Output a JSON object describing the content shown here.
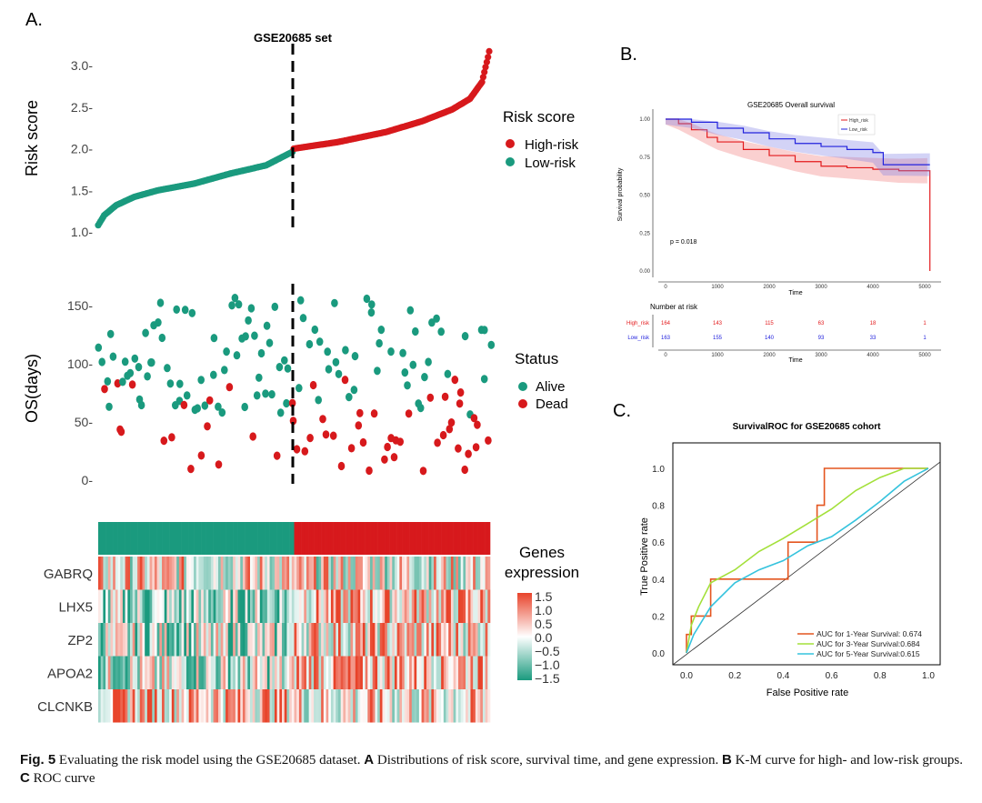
{
  "chart_data": [
    {
      "panel_label": "A.",
      "type": "scatter",
      "set_label": "GSE20685 set",
      "ylabel": "Risk score",
      "ylim": [
        1.0,
        3.25
      ],
      "yticks": [
        "1.0",
        "1.5",
        "2.0",
        "2.5",
        "3.0"
      ],
      "legend": {
        "title": "Risk score",
        "entries": [
          "High-risk",
          "Low-risk"
        ]
      },
      "n_low": 163,
      "n_high": 164,
      "low_curve": [
        [
          0,
          1.08
        ],
        [
          5,
          1.2
        ],
        [
          15,
          1.32
        ],
        [
          30,
          1.42
        ],
        [
          50,
          1.5
        ],
        [
          80,
          1.58
        ],
        [
          110,
          1.7
        ],
        [
          140,
          1.8
        ],
        [
          163,
          1.97
        ]
      ],
      "high_curve": [
        [
          163,
          2.0
        ],
        [
          200,
          2.08
        ],
        [
          240,
          2.2
        ],
        [
          270,
          2.33
        ],
        [
          295,
          2.47
        ],
        [
          310,
          2.6
        ],
        [
          320,
          2.8
        ],
        [
          325,
          3.1
        ],
        [
          327,
          3.24
        ]
      ]
    },
    {
      "type": "scatter",
      "ylabel": "OS(days)",
      "ylim": [
        0,
        165
      ],
      "yticks": [
        "0",
        "50",
        "100",
        "150"
      ],
      "legend": {
        "title": "Status",
        "entries": [
          "Alive",
          "Dead"
        ]
      }
    },
    {
      "type": "heatmap",
      "genes": [
        "GABRQ",
        "LHX5",
        "ZP2",
        "APOA2",
        "CLCNKB"
      ],
      "legend": {
        "title_line1": "Genes",
        "title_line2": "expression",
        "ticks": [
          "1.5",
          "1.0",
          "0.5",
          "0.0",
          "−0.5",
          "−1.0",
          "−1.5"
        ]
      }
    },
    {
      "panel_label": "B.",
      "type": "line",
      "title": "GSE20685 Overall survival",
      "xlabel": "Time",
      "ylabel": "Survival probability",
      "xticks": [
        "0",
        "1000",
        "2000",
        "3000",
        "4000",
        "5000"
      ],
      "yticks": [
        "0.00",
        "0.25",
        "0.50",
        "0.75",
        "1.00"
      ],
      "pvalue": "p = 0.018",
      "series": [
        {
          "name": "High_risk",
          "x": [
            0,
            250,
            500,
            800,
            1000,
            1500,
            2000,
            2500,
            3000,
            3500,
            4000,
            4500,
            5050,
            5100
          ],
          "y": [
            1.0,
            0.97,
            0.93,
            0.88,
            0.85,
            0.8,
            0.76,
            0.72,
            0.69,
            0.68,
            0.67,
            0.66,
            0.66,
            0.0
          ]
        },
        {
          "name": "Low_risk",
          "x": [
            0,
            500,
            1000,
            1500,
            2000,
            2500,
            3000,
            3500,
            4000,
            4200,
            5100
          ],
          "y": [
            1.0,
            0.98,
            0.94,
            0.91,
            0.87,
            0.84,
            0.82,
            0.8,
            0.78,
            0.7,
            0.7
          ]
        }
      ],
      "risk_table": {
        "title": "Number at risk",
        "rows": [
          {
            "label": "High_risk",
            "values": [
              "164",
              "143",
              "115",
              "63",
              "18",
              "1"
            ]
          },
          {
            "label": "Low_risk",
            "values": [
              "163",
              "155",
              "140",
              "93",
              "33",
              "1"
            ]
          }
        ]
      }
    },
    {
      "panel_label": "C.",
      "type": "line",
      "title": "SurvivalROC for GSE20685 cohort",
      "xlabel": "False Positive rate",
      "ylabel": "True Positive rate",
      "ticks": [
        "0.0",
        "0.2",
        "0.4",
        "0.6",
        "0.8",
        "1.0"
      ],
      "series": [
        {
          "name": "AUC for 1-Year Survival: 0.674",
          "x": [
            0,
            0,
            0.02,
            0.02,
            0.1,
            0.1,
            0.42,
            0.42,
            0.54,
            0.54,
            0.57,
            0.57,
            1.0
          ],
          "y": [
            0,
            0.1,
            0.1,
            0.2,
            0.2,
            0.4,
            0.4,
            0.6,
            0.6,
            0.8,
            0.8,
            1.0,
            1.0
          ]
        },
        {
          "name": "AUC for 3-Year Survival:0.684",
          "x": [
            0,
            0.02,
            0.05,
            0.1,
            0.2,
            0.3,
            0.4,
            0.5,
            0.6,
            0.7,
            0.8,
            0.9,
            1.0
          ],
          "y": [
            0,
            0.15,
            0.25,
            0.38,
            0.45,
            0.55,
            0.62,
            0.7,
            0.78,
            0.88,
            0.95,
            1.0,
            1.0
          ]
        },
        {
          "name": "AUC for 5-Year Survival:0.615",
          "x": [
            0,
            0.03,
            0.1,
            0.2,
            0.3,
            0.4,
            0.5,
            0.6,
            0.7,
            0.8,
            0.9,
            1.0
          ],
          "y": [
            0,
            0.1,
            0.25,
            0.38,
            0.45,
            0.5,
            0.58,
            0.63,
            0.72,
            0.82,
            0.93,
            1.0
          ]
        }
      ],
      "colors": [
        "#e4551f",
        "#a3e03a",
        "#35c3dd"
      ]
    }
  ],
  "colors": {
    "high": "#d7191c",
    "low": "#1a9a7e",
    "km_high": "#e31a1c",
    "km_low": "#2222dd"
  },
  "caption": {
    "fig": "Fig. 5",
    "t1": " Evaluating the risk model using the GSE20685 dataset. ",
    "a": "A",
    "t2": " Distributions of risk score, survival time, and gene expression. ",
    "b": "B",
    "t3": " K-M curve for high- and low-risk groups. ",
    "c": "C",
    "t4": " ROC curve"
  }
}
